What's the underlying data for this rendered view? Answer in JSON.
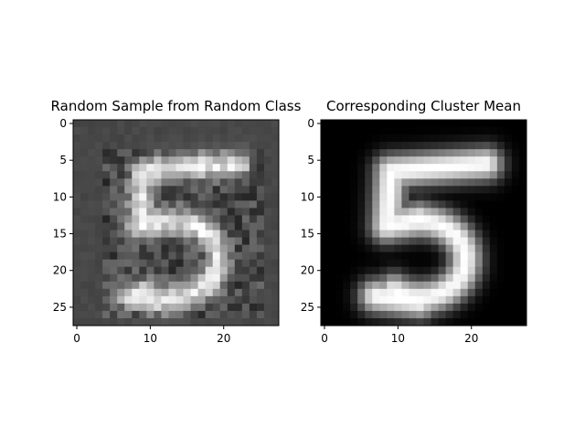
{
  "chart_data": [
    {
      "type": "heatmap",
      "title": "Random Sample from Random Class",
      "colormap": "gray",
      "rows": 28,
      "cols": 28,
      "xlim": [
        -0.5,
        27.5
      ],
      "ylim": [
        27.5,
        -0.5
      ],
      "xticks": [
        0,
        10,
        20
      ],
      "yticks": [
        0,
        5,
        10,
        15,
        20,
        25
      ],
      "background_level": 0.28,
      "content": "noisy grayscale image of a handwritten digit 5"
    },
    {
      "type": "heatmap",
      "title": "Corresponding Cluster Mean",
      "colormap": "gray",
      "rows": 28,
      "cols": 28,
      "xlim": [
        -0.5,
        27.5
      ],
      "ylim": [
        27.5,
        -0.5
      ],
      "xticks": [
        0,
        10,
        20
      ],
      "yticks": [
        0,
        5,
        10,
        15,
        20,
        25
      ],
      "background_level": 0.0,
      "content": "smooth cluster-mean image of a digit 5"
    }
  ]
}
